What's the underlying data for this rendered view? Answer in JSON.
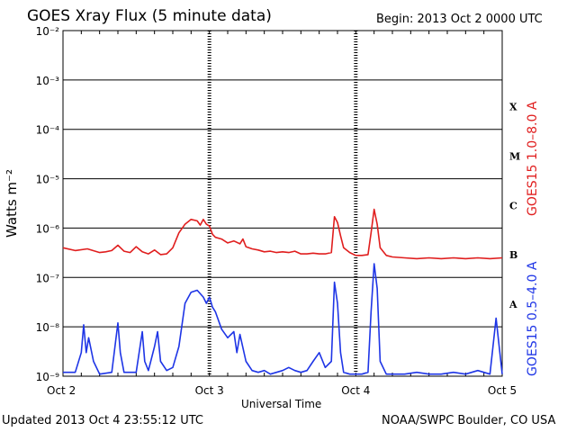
{
  "header": {
    "title": "GOES Xray Flux (5 minute data)",
    "begin": "Begin:  2013 Oct 2 0000 UTC"
  },
  "footer": {
    "updated": "Updated 2013 Oct  4 23:55:12 UTC",
    "credit": "NOAA/SWPC Boulder, CO USA"
  },
  "chart_data": {
    "type": "line",
    "title": "GOES Xray Flux (5 minute data)",
    "xlabel": "Universal Time",
    "ylabel": "Watts m⁻²",
    "yscale": "log",
    "ylim": [
      1e-09,
      0.01
    ],
    "xlim": [
      0,
      72
    ],
    "x_unit": "hours since 2013 Oct 2 0000 UTC",
    "x_ticks": [
      {
        "x": 0,
        "label": "Oct 2"
      },
      {
        "x": 24,
        "label": "Oct 3"
      },
      {
        "x": 48,
        "label": "Oct 4"
      },
      {
        "x": 72,
        "label": "Oct 5"
      }
    ],
    "y_ticks": [
      {
        "value": 1e-09,
        "label": "10⁻⁹"
      },
      {
        "value": 1e-08,
        "label": "10⁻⁸"
      },
      {
        "value": 1e-07,
        "label": "10⁻⁷"
      },
      {
        "value": 1e-06,
        "label": "10⁻⁶"
      },
      {
        "value": 1e-05,
        "label": "10⁻⁵"
      },
      {
        "value": 0.0001,
        "label": "10⁻⁴"
      },
      {
        "value": 0.001,
        "label": "10⁻³"
      },
      {
        "value": 0.01,
        "label": "10⁻²"
      }
    ],
    "flare_classes": [
      {
        "label": "A",
        "value": 3e-08
      },
      {
        "label": "B",
        "value": 3e-07
      },
      {
        "label": "C",
        "value": 3e-06
      },
      {
        "label": "M",
        "value": 3e-05
      },
      {
        "label": "X",
        "value": 0.0003
      }
    ],
    "grid": true,
    "series": [
      {
        "name": "GOES15 1.0–8.0 A",
        "color": "#e01e1e",
        "x": [
          0,
          2,
          4,
          6,
          7,
          8,
          9,
          10,
          11,
          12,
          13,
          14,
          15,
          16,
          17,
          18,
          19,
          20,
          21,
          22,
          22.5,
          23,
          23.5,
          24,
          24.5,
          25,
          26,
          27,
          28,
          29,
          29.5,
          30,
          31,
          32,
          33,
          34,
          35,
          36,
          37,
          38,
          39,
          40,
          41,
          42,
          43,
          44,
          44.5,
          45,
          45.5,
          46,
          47,
          48,
          49,
          50,
          50.5,
          51,
          51.5,
          52,
          53,
          54,
          56,
          58,
          60,
          62,
          64,
          66,
          68,
          70,
          72
        ],
        "y": [
          4e-07,
          3.5e-07,
          3.8e-07,
          3.2e-07,
          3.3e-07,
          3.5e-07,
          4.5e-07,
          3.4e-07,
          3.2e-07,
          4.2e-07,
          3.3e-07,
          3e-07,
          3.6e-07,
          2.9e-07,
          3e-07,
          4e-07,
          8e-07,
          1.2e-06,
          1.5e-06,
          1.4e-06,
          1.15e-06,
          1.5e-06,
          1.2e-06,
          1.1e-06,
          7.5e-07,
          6.5e-07,
          6e-07,
          5e-07,
          5.5e-07,
          4.8e-07,
          6e-07,
          4.2e-07,
          3.8e-07,
          3.6e-07,
          3.3e-07,
          3.4e-07,
          3.2e-07,
          3.3e-07,
          3.2e-07,
          3.4e-07,
          3e-07,
          3e-07,
          3.1e-07,
          3e-07,
          3e-07,
          3.2e-07,
          1.7e-06,
          1.3e-06,
          7e-07,
          4e-07,
          3.2e-07,
          2.8e-07,
          2.8e-07,
          2.9e-07,
          8e-07,
          2.4e-06,
          1.2e-06,
          4e-07,
          2.8e-07,
          2.6e-07,
          2.5e-07,
          2.4e-07,
          2.5e-07,
          2.4e-07,
          2.5e-07,
          2.4e-07,
          2.5e-07,
          2.4e-07,
          2.5e-07
        ]
      },
      {
        "name": "GOES15 0.5–4.0 A",
        "color": "#1e35e6",
        "x": [
          0,
          2,
          3,
          3.4,
          3.8,
          4.2,
          5,
          6,
          8,
          9,
          9.4,
          10,
          12,
          13,
          13.4,
          14,
          15,
          15.5,
          16,
          17,
          18,
          19,
          20,
          21,
          22,
          23,
          23.5,
          24,
          24.5,
          25,
          26,
          27,
          28,
          28.5,
          29,
          30,
          31,
          32,
          33,
          34,
          35,
          36,
          37,
          38,
          39,
          40,
          41,
          42,
          43,
          44,
          44.5,
          45,
          45.5,
          46,
          47,
          48,
          49,
          50,
          50.5,
          51,
          51.5,
          52,
          53,
          56,
          58,
          60,
          62,
          64,
          66,
          68,
          70,
          71,
          72
        ],
        "y": [
          1.2e-09,
          1.2e-09,
          3e-09,
          1.1e-08,
          3e-09,
          6e-09,
          2e-09,
          1.1e-09,
          1.2e-09,
          1.2e-08,
          3e-09,
          1.2e-09,
          1.2e-09,
          8e-09,
          2e-09,
          1.3e-09,
          4e-09,
          8e-09,
          2e-09,
          1.3e-09,
          1.5e-09,
          4e-09,
          3e-08,
          5e-08,
          5.5e-08,
          4e-08,
          3e-08,
          4e-08,
          2.5e-08,
          2e-08,
          9e-09,
          6e-09,
          8e-09,
          3e-09,
          7e-09,
          2e-09,
          1.3e-09,
          1.2e-09,
          1.3e-09,
          1.1e-09,
          1.2e-09,
          1.3e-09,
          1.5e-09,
          1.3e-09,
          1.2e-09,
          1.3e-09,
          2e-09,
          3e-09,
          1.5e-09,
          2e-09,
          8e-08,
          3e-08,
          3e-09,
          1.2e-09,
          1.1e-09,
          1.1e-09,
          1.1e-09,
          1.2e-09,
          2e-08,
          1.9e-07,
          6e-08,
          2e-09,
          1.1e-09,
          1.1e-09,
          1.2e-09,
          1.1e-09,
          1.1e-09,
          1.2e-09,
          1.1e-09,
          1.3e-09,
          1.1e-09,
          1.5e-08,
          1.1e-09
        ]
      }
    ]
  }
}
